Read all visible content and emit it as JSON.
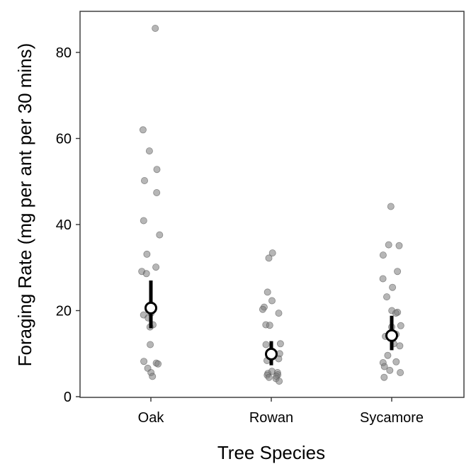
{
  "chart_data": {
    "type": "scatter",
    "title": "",
    "xlabel": "Tree Species",
    "ylabel": "Foraging Rate (mg per ant per 30 mins)",
    "categories": [
      "Oak",
      "Rowan",
      "Sycamore"
    ],
    "ylim": [
      0,
      90
    ],
    "yticks": [
      0,
      20,
      40,
      60,
      80
    ],
    "grid": false,
    "legend": "none",
    "raw_points": [
      {
        "category": "Oak",
        "values": [
          85.6,
          62.0,
          57.1,
          52.8,
          50.2,
          47.4,
          40.9,
          37.6,
          33.1,
          30.1,
          29.1,
          28.6,
          20.6,
          19.4,
          19.0,
          18.3,
          16.7,
          16.2,
          12.1,
          8.2,
          7.8,
          7.6,
          6.6,
          5.6,
          4.7
        ]
      },
      {
        "category": "Rowan",
        "values": [
          33.4,
          32.2,
          24.3,
          22.3,
          20.8,
          20.3,
          19.4,
          16.7,
          16.6,
          12.3,
          12.1,
          10.4,
          10.0,
          8.8,
          8.4,
          5.9,
          5.6,
          5.4,
          5.1,
          5.0,
          4.7,
          4.5,
          4.2,
          3.6
        ]
      },
      {
        "category": "Sycamore",
        "values": [
          44.2,
          35.3,
          35.1,
          32.9,
          29.1,
          27.4,
          25.4,
          23.2,
          20.0,
          19.6,
          19.4,
          16.5,
          16.2,
          14.5,
          14.0,
          12.3,
          11.8,
          9.6,
          8.1,
          7.9,
          7.0,
          6.1,
          5.6,
          4.5
        ]
      }
    ],
    "summary": [
      {
        "category": "Oak",
        "mean": 20.6,
        "ci_low": 15.9,
        "ci_high": 27.0
      },
      {
        "category": "Rowan",
        "mean": 9.9,
        "ci_low": 7.3,
        "ci_high": 12.9
      },
      {
        "category": "Sycamore",
        "mean": 14.2,
        "ci_low": 10.8,
        "ci_high": 18.8
      }
    ]
  },
  "colors": {
    "raw_point": "#7a7a7a",
    "mean_fill": "#ffffff",
    "mean_stroke": "#000000",
    "ci_bar": "#000000",
    "frame": "#333333"
  }
}
